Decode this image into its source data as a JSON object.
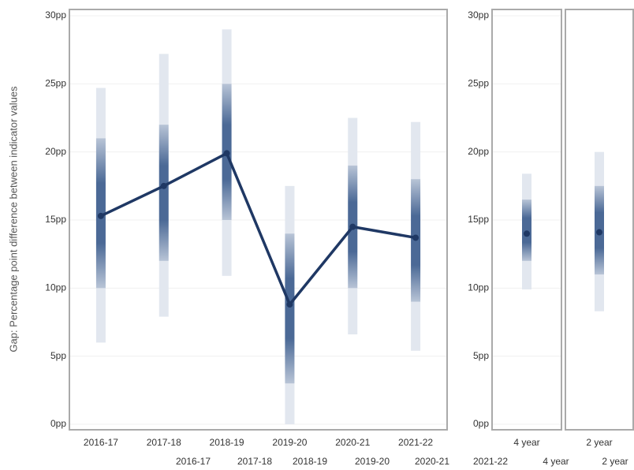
{
  "chart_data": [
    {
      "type": "line",
      "y_label": "Gap: Percentage point difference between indicator values",
      "categories": [
        "2016-17",
        "2017-18",
        "2018-19",
        "2019-20",
        "2020-21",
        "2021-22"
      ],
      "values": [
        15.3,
        17.5,
        19.9,
        8.8,
        14.5,
        13.7
      ],
      "lower": [
        6,
        7.9,
        10.9,
        0,
        6.6,
        5.4
      ],
      "upper": [
        24.7,
        27.2,
        29,
        17.5,
        22.5,
        22.2
      ],
      "inner_lower": [
        10,
        12,
        15,
        3,
        10,
        9
      ],
      "inner_upper": [
        21,
        22,
        25,
        14,
        19,
        18
      ],
      "color": "#1f3864",
      "band_color": "#3a5b8c",
      "ylim": [
        0,
        30
      ],
      "yticks": [
        {
          "value": 0,
          "label": "0pp"
        },
        {
          "value": 5,
          "label": "5pp"
        },
        {
          "value": 10,
          "label": "10pp"
        },
        {
          "value": 15,
          "label": "15pp"
        },
        {
          "value": 20,
          "label": "20pp"
        },
        {
          "value": 25,
          "label": "25pp"
        },
        {
          "value": 30,
          "label": "30pp"
        }
      ]
    },
    {
      "type": "point",
      "categories": [
        "4 year"
      ],
      "values": [
        14.0
      ],
      "lower": [
        9.9
      ],
      "upper": [
        18.4
      ],
      "inner_lower": [
        12
      ],
      "inner_upper": [
        16.5
      ],
      "color": "#1f3864",
      "band_color": "#3a5b8c",
      "ylim": [
        0,
        30
      ],
      "yticks": [
        {
          "value": 0,
          "label": "0pp"
        },
        {
          "value": 5,
          "label": "5pp"
        },
        {
          "value": 10,
          "label": "10pp"
        },
        {
          "value": 15,
          "label": "15pp"
        },
        {
          "value": 20,
          "label": "20pp"
        },
        {
          "value": 25,
          "label": "25pp"
        },
        {
          "value": 30,
          "label": "30pp"
        }
      ]
    },
    {
      "type": "point",
      "categories": [
        "2 year"
      ],
      "values": [
        14.1
      ],
      "lower": [
        8.3
      ],
      "upper": [
        20
      ],
      "inner_lower": [
        11
      ],
      "inner_upper": [
        17.5
      ],
      "color": "#1f3864",
      "band_color": "#3a5b8c",
      "ylim": [
        0,
        30
      ]
    }
  ],
  "legend_labels": [
    "2016-17",
    "2017-18",
    "2018-19",
    "2019-20",
    "2020-21",
    "2021-22",
    "4 year",
    "2 year"
  ]
}
